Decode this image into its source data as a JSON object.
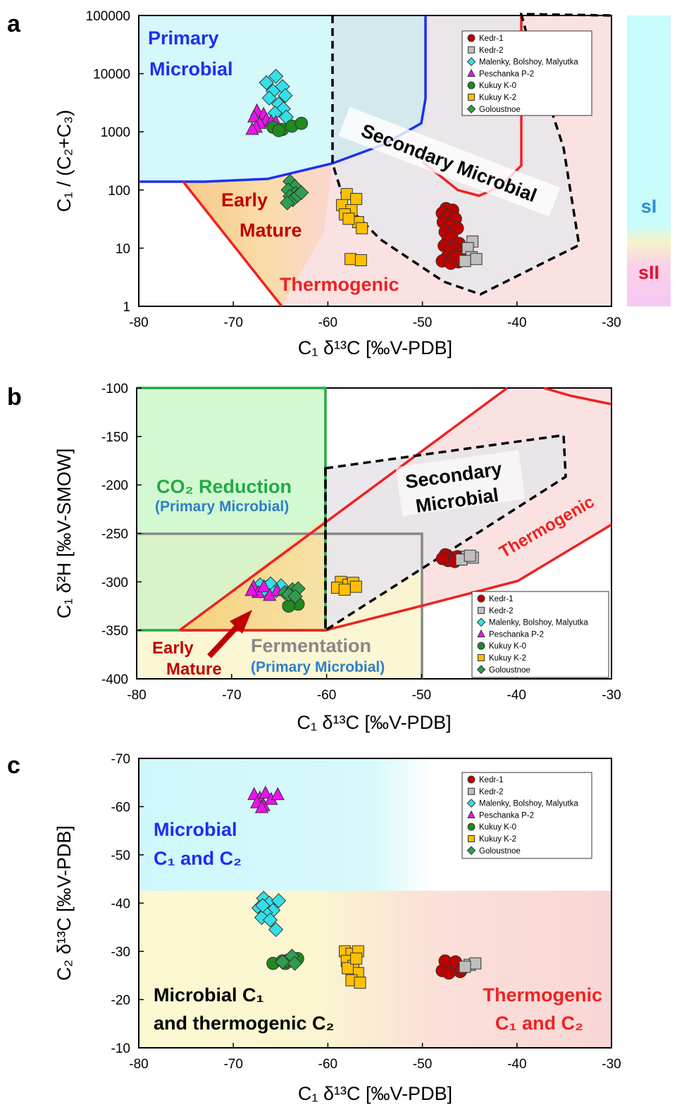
{
  "panels": [
    {
      "letter": "a",
      "xlabel": "C₁ δ¹³C [‰V-PDB]",
      "ylabel": "C₁ / (C₂+C₃)",
      "xticks": [
        "-80",
        "-70",
        "-60",
        "-50",
        "-40",
        "-30"
      ],
      "yticks": [
        "1",
        "10",
        "100",
        "1000",
        "10000",
        "100000"
      ],
      "regions": {
        "primary": [
          "Primary",
          "Microbial"
        ],
        "early": [
          "Early",
          "Mature"
        ],
        "secondary": "Secondary Microbial",
        "thermo": "Thermogenic"
      },
      "side_bar": {
        "upper": "sI",
        "lower": "sII"
      }
    },
    {
      "letter": "b",
      "xlabel": "C₁ δ¹³C [‰V-PDB]",
      "ylabel": "C₁ δ²H [‰V-SMOW]",
      "xticks": [
        "-80",
        "-70",
        "-60",
        "-50",
        "-40",
        "-30"
      ],
      "yticks": [
        "-400",
        "-350",
        "-300",
        "-250",
        "-200",
        "-150",
        "-100"
      ],
      "regions": {
        "co2": "CO₂ Reduction",
        "co2_sub": "(Primary Microbial)",
        "secondary": [
          "Secondary",
          "Microbial"
        ],
        "thermo": "Thermogenic",
        "early": [
          "Early",
          "Mature"
        ],
        "ferm": "Fermentation",
        "ferm_sub": "(Primary Microbial)"
      }
    },
    {
      "letter": "c",
      "xlabel": "C₁ δ¹³C [‰V-PDB]",
      "ylabel": "C₂ δ¹³C [‰V-PDB]",
      "xticks": [
        "-80",
        "-70",
        "-60",
        "-50",
        "-40",
        "-30"
      ],
      "yticks": [
        "-10",
        "-20",
        "-30",
        "-40",
        "-50",
        "-60",
        "-70"
      ],
      "regions": {
        "microbial": [
          "Microbial",
          "C₁ and C₂"
        ],
        "mixed": [
          "Microbial C₁",
          "and thermogenic C₂"
        ],
        "thermo": [
          "Thermogenic",
          "C₁ and C₂"
        ]
      }
    }
  ],
  "legend": [
    "Kedr-1",
    "Kedr-2",
    "Malenky, Bolshoy, Malyutka",
    "Peschanka P-2",
    "Kukuy K-0",
    "Kukuy K-2",
    "Goloustnoe"
  ],
  "series_style": {
    "Kedr-1": {
      "color": "#c00000",
      "marker": "circle"
    },
    "Kedr-2": {
      "color": "#bfbfbf",
      "marker": "square"
    },
    "Malenky, Bolshoy, Malyutka": {
      "color": "#33e0e8",
      "marker": "diamond"
    },
    "Peschanka P-2": {
      "color": "#ee11ee",
      "marker": "triangle"
    },
    "Kukuy K-0": {
      "color": "#1f8a1f",
      "marker": "circle"
    },
    "Kukuy K-2": {
      "color": "#ffc000",
      "marker": "square"
    },
    "Goloustnoe": {
      "color": "#2e9e4e",
      "marker": "diamond"
    }
  },
  "chart_data": [
    {
      "type": "scatter",
      "panel": "a",
      "xlabel": "C₁ δ¹³C [‰V-PDB]",
      "ylabel": "C₁ / (C₂+C₃)",
      "xlim": [
        -80,
        -30
      ],
      "ylim": [
        1,
        100000
      ],
      "yscale": "log",
      "series": [
        {
          "name": "Kedr-1",
          "points": [
            [
              -47.5,
              48
            ],
            [
              -46.8,
              45
            ],
            [
              -47.9,
              40
            ],
            [
              -47.2,
              35
            ],
            [
              -46.5,
              32
            ],
            [
              -47.8,
              28
            ],
            [
              -47.0,
              25
            ],
            [
              -46.3,
              22
            ],
            [
              -47.6,
              19
            ],
            [
              -46.9,
              16
            ],
            [
              -47.3,
              14
            ],
            [
              -46.1,
              12
            ],
            [
              -47.7,
              11
            ],
            [
              -46.6,
              10
            ],
            [
              -47.1,
              9
            ],
            [
              -46.0,
              8
            ],
            [
              -47.4,
              7
            ],
            [
              -46.7,
              6.5
            ],
            [
              -47.9,
              6
            ],
            [
              -46.2,
              5.8
            ],
            [
              -47.0,
              5.5
            ],
            [
              -45.9,
              6.2
            ],
            [
              -46.4,
              7.2
            ]
          ]
        },
        {
          "name": "Kedr-2",
          "points": [
            [
              -44.7,
              13
            ],
            [
              -45.2,
              10
            ],
            [
              -44.8,
              7
            ],
            [
              -44.3,
              6.5
            ],
            [
              -45.5,
              6
            ]
          ]
        },
        {
          "name": "Malenky, Bolshoy, Malyutka",
          "points": [
            [
              -65.5,
              9000
            ],
            [
              -66.5,
              7000
            ],
            [
              -64.8,
              6000
            ],
            [
              -65.8,
              5000
            ],
            [
              -64.5,
              4200
            ],
            [
              -66.2,
              3800
            ],
            [
              -65.2,
              3000
            ],
            [
              -64.7,
              2500
            ],
            [
              -65.6,
              2100
            ],
            [
              -64.4,
              1800
            ]
          ]
        },
        {
          "name": "Peschanka P-2",
          "points": [
            [
              -67.5,
              2300
            ],
            [
              -66.8,
              2000
            ],
            [
              -67.8,
              1800
            ],
            [
              -66.5,
              1600
            ],
            [
              -67.2,
              1400
            ],
            [
              -66.0,
              1500
            ],
            [
              -67.6,
              1200
            ],
            [
              -65.5,
              1450
            ],
            [
              -68.0,
              1100
            ]
          ]
        },
        {
          "name": "Kukuy K-0",
          "points": [
            [
              -65.8,
              1200
            ],
            [
              -64.8,
              1100
            ],
            [
              -63.8,
              1250
            ],
            [
              -62.8,
              1400
            ],
            [
              -65.2,
              1050
            ]
          ]
        },
        {
          "name": "Kukuy K-2",
          "points": [
            [
              -58.0,
              85
            ],
            [
              -57.0,
              70
            ],
            [
              -58.5,
              55
            ],
            [
              -57.5,
              45
            ],
            [
              -58.2,
              38
            ],
            [
              -56.8,
              28
            ],
            [
              -57.8,
              32
            ],
            [
              -56.4,
              22
            ],
            [
              -57.6,
              6.5
            ],
            [
              -56.5,
              6.2
            ]
          ]
        },
        {
          "name": "Goloustnoe",
          "points": [
            [
              -64.0,
              140
            ],
            [
              -63.5,
              115
            ],
            [
              -64.2,
              100
            ],
            [
              -63.4,
              88
            ],
            [
              -64.0,
              78
            ],
            [
              -63.7,
              68
            ],
            [
              -63.2,
              80
            ],
            [
              -62.8,
              90
            ],
            [
              -64.3,
              60
            ]
          ]
        }
      ]
    },
    {
      "type": "scatter",
      "panel": "b",
      "xlabel": "C₁ δ¹³C [‰V-PDB]",
      "ylabel": "C₁ δ²H [‰V-SMOW]",
      "xlim": [
        -80,
        -30
      ],
      "ylim": [
        -400,
        -100
      ],
      "series": [
        {
          "name": "Kedr-1",
          "points": [
            [
              -47.5,
              -272
            ],
            [
              -46.8,
              -275
            ],
            [
              -47.2,
              -278
            ],
            [
              -46.2,
              -274
            ],
            [
              -47.8,
              -276
            ],
            [
              -46.5,
              -279
            ],
            [
              -45.8,
              -276
            ]
          ]
        },
        {
          "name": "Kedr-2",
          "points": [
            [
              -45.2,
              -274
            ],
            [
              -44.6,
              -275
            ],
            [
              -45.8,
              -277
            ],
            [
              -44.9,
              -273
            ]
          ]
        },
        {
          "name": "Malenky, Bolshoy, Malyutka",
          "points": [
            [
              -67.0,
              -303
            ],
            [
              -66.4,
              -306
            ],
            [
              -65.9,
              -302
            ],
            [
              -65.3,
              -309
            ],
            [
              -66.7,
              -309
            ],
            [
              -64.8,
              -304
            ]
          ]
        },
        {
          "name": "Peschanka P-2",
          "points": [
            [
              -67.7,
              -305
            ],
            [
              -67.2,
              -311
            ],
            [
              -66.6,
              -305
            ],
            [
              -66.0,
              -314
            ],
            [
              -65.2,
              -309
            ],
            [
              -67.9,
              -309
            ]
          ]
        },
        {
          "name": "Kukuy K-0",
          "points": [
            [
              -63.0,
              -323
            ],
            [
              -64.0,
              -325
            ]
          ]
        },
        {
          "name": "Kukuy K-2",
          "points": [
            [
              -58.5,
              -300
            ],
            [
              -57.7,
              -303
            ],
            [
              -58.9,
              -306
            ],
            [
              -57.2,
              -301
            ],
            [
              -58.1,
              -308
            ],
            [
              -56.9,
              -305
            ]
          ]
        },
        {
          "name": "Goloustnoe",
          "points": [
            [
              -64.4,
              -311
            ],
            [
              -63.6,
              -308
            ],
            [
              -63.0,
              -307
            ],
            [
              -64.0,
              -313
            ],
            [
              -63.3,
              -315
            ]
          ]
        }
      ]
    },
    {
      "type": "scatter",
      "panel": "c",
      "xlabel": "C₁ δ¹³C [‰V-PDB]",
      "ylabel": "C₂ δ¹³C [‰V-PDB]",
      "xlim": [
        -80,
        -30
      ],
      "ylim": [
        -10,
        -70
      ],
      "series": [
        {
          "name": "Kedr-1",
          "points": [
            [
              -47.5,
              -27.5
            ],
            [
              -46.8,
              -26.5
            ],
            [
              -47.9,
              -26
            ],
            [
              -46.2,
              -27
            ],
            [
              -47.2,
              -25.5
            ],
            [
              -46.0,
              -25.8
            ],
            [
              -47.6,
              -28
            ],
            [
              -46.5,
              -27.8
            ],
            [
              -45.8,
              -26.3
            ]
          ]
        },
        {
          "name": "Kedr-2",
          "points": [
            [
              -45.0,
              -27.2
            ],
            [
              -44.4,
              -27.5
            ],
            [
              -45.5,
              -26.8
            ]
          ]
        },
        {
          "name": "Malenky, Bolshoy, Malyutka",
          "points": [
            [
              -66.8,
              -41
            ],
            [
              -66.2,
              -40
            ],
            [
              -67.3,
              -39
            ],
            [
              -65.8,
              -38.5
            ],
            [
              -66.6,
              -38
            ],
            [
              -65.2,
              -40.5
            ],
            [
              -67.0,
              -37
            ],
            [
              -66.1,
              -36.5
            ],
            [
              -65.5,
              -34.5
            ],
            [
              -66.9,
              -39.5
            ]
          ]
        },
        {
          "name": "Peschanka P-2",
          "points": [
            [
              -67.8,
              -62.5
            ],
            [
              -67.2,
              -61.8
            ],
            [
              -66.6,
              -62.8
            ],
            [
              -67.5,
              -60.8
            ],
            [
              -66.8,
              -60.2
            ],
            [
              -66.0,
              -61.5
            ],
            [
              -65.3,
              -62.5
            ],
            [
              -67.0,
              -59.8
            ]
          ]
        },
        {
          "name": "Kukuy K-0",
          "points": [
            [
              -65.8,
              -27.5
            ],
            [
              -64.5,
              -27.5
            ],
            [
              -63.8,
              -28
            ],
            [
              -63.2,
              -28.5
            ],
            [
              -64.8,
              -28
            ]
          ]
        },
        {
          "name": "Kukuy K-2",
          "points": [
            [
              -58.2,
              -30
            ],
            [
              -57.5,
              -29.5
            ],
            [
              -56.8,
              -30
            ],
            [
              -58.0,
              -28
            ],
            [
              -57.3,
              -27
            ],
            [
              -56.8,
              -25.5
            ],
            [
              -57.5,
              -24
            ],
            [
              -56.6,
              -23.5
            ],
            [
              -57.9,
              -26.5
            ],
            [
              -57.0,
              -28.5
            ]
          ]
        },
        {
          "name": "Goloustnoe",
          "points": [
            [
              -64.4,
              -28
            ],
            [
              -63.8,
              -29
            ],
            [
              -64.8,
              -27.8
            ],
            [
              -63.5,
              -27.5
            ]
          ]
        }
      ]
    }
  ]
}
